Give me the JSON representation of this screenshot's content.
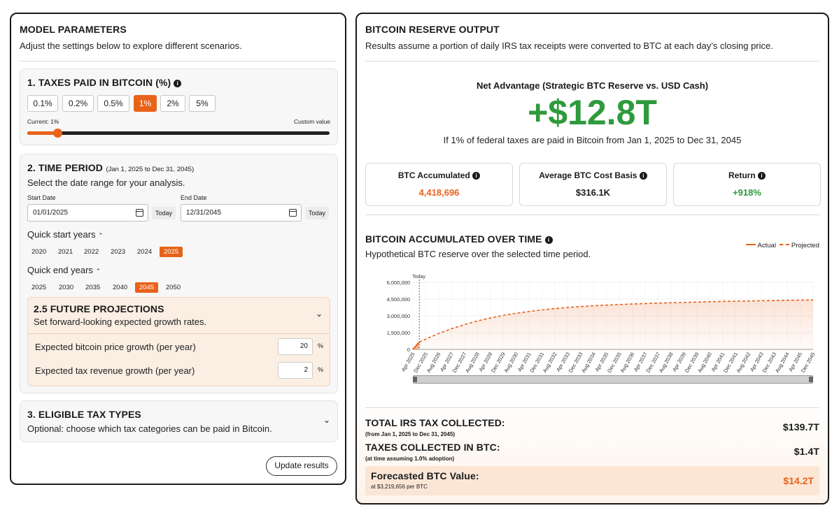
{
  "model": {
    "title": "MODEL PARAMETERS",
    "subtitle": "Adjust the settings below to explore different scenarios.",
    "taxes": {
      "title": "1. TAXES PAID IN BITCOIN (%)",
      "options": [
        "0.1%",
        "0.2%",
        "0.5%",
        "1%",
        "2%",
        "5%"
      ],
      "selected": "1%",
      "current_label": "Current: 1%",
      "custom_label": "Custom value",
      "slider_fraction": 0.1
    },
    "time": {
      "title": "2. TIME PERIOD",
      "range_note": "(Jan 1, 2025 to Dec 31, 2045)",
      "subtitle": "Select the date range for your analysis.",
      "start_label": "Start Date",
      "start_value": "01/01/2025",
      "end_label": "End Date",
      "end_value": "12/31/2045",
      "today_label": "Today",
      "quick_start_label": "Quick start years",
      "quick_start_years": [
        "2020",
        "2021",
        "2022",
        "2023",
        "2024",
        "2025"
      ],
      "quick_start_selected": "2025",
      "quick_end_label": "Quick end years",
      "quick_end_years": [
        "2025",
        "2030",
        "2035",
        "2040",
        "2045",
        "2050"
      ],
      "quick_end_selected": "2045"
    },
    "projections": {
      "title": "2.5 FUTURE PROJECTIONS",
      "subtitle": "Set forward-looking expected growth rates.",
      "price_growth_label": "Expected bitcoin price growth (per year)",
      "price_growth_value": "20",
      "tax_growth_label": "Expected tax revenue growth (per year)",
      "tax_growth_value": "2",
      "unit": "%"
    },
    "eligible": {
      "title": "3. ELIGIBLE TAX TYPES",
      "subtitle": "Optional: choose which tax categories can be paid in Bitcoin."
    },
    "update_button": "Update results"
  },
  "output": {
    "title": "BITCOIN RESERVE OUTPUT",
    "subtitle": "Results assume a portion of daily IRS tax receipts were converted to BTC at each day’s closing price.",
    "net_label": "Net Advantage (Strategic BTC Reserve vs. USD Cash)",
    "net_value": "+$12.8T",
    "net_note": "If 1% of federal taxes are paid in Bitcoin from Jan 1, 2025 to Dec 31, 2045",
    "stats": [
      {
        "label": "BTC Accumulated",
        "value": "4,418,696",
        "color": "#e8621a"
      },
      {
        "label": "Average BTC Cost Basis",
        "value": "$316.1K",
        "color": "#1a1a1a"
      },
      {
        "label": "Return",
        "value": "+918%",
        "color": "#2e9a3c"
      }
    ],
    "chart_title": "BITCOIN ACCUMULATED OVER TIME",
    "chart_subtitle": "Hypothetical BTC reserve over the selected time period.",
    "legend_actual": "Actual",
    "legend_projected": "Projected",
    "totals": [
      {
        "label": "TOTAL IRS TAX COLLECTED:",
        "note": "(from Jan 1, 2025 to Dec 31, 2045)",
        "value": "$139.7T"
      },
      {
        "label": "TAXES COLLECTED IN BTC:",
        "note": "(at time assuming 1.0% adoption)",
        "value": "$1.4T"
      }
    ],
    "forecast": {
      "label": "Forecasted BTC Value:",
      "note": "at $3,219,656 per BTC",
      "value": "$14.2T"
    }
  },
  "chart_data": {
    "type": "area",
    "title": "BITCOIN ACCUMULATED OVER TIME",
    "ylim": [
      0,
      6000000
    ],
    "yticks": [
      0,
      1500000,
      3000000,
      4500000,
      6000000
    ],
    "ytick_labels": [
      "0",
      "1,500,000",
      "3,000,000",
      "4,500,000",
      "6,000,000"
    ],
    "today_marker": "Today",
    "today_x": 0.5,
    "x_labels": [
      "Apr 2025",
      "Dec 2025",
      "Aug 2026",
      "Apr 2027",
      "Dec 2027",
      "Aug 2028",
      "Apr 2029",
      "Dec 2029",
      "Aug 2030",
      "Apr 2031",
      "Dec 2031",
      "Aug 2032",
      "Apr 2033",
      "Dec 2033",
      "Aug 2034",
      "Apr 2035",
      "Dec 2035",
      "Aug 2036",
      "Apr 2037",
      "Dec 2037",
      "Aug 2038",
      "Apr 2039",
      "Dec 2039",
      "Aug 2040",
      "Apr 2041",
      "Dec 2041",
      "Aug 2042",
      "Apr 2043",
      "Dec 2043",
      "Aug 2044",
      "Apr 2045",
      "Dec 2045"
    ],
    "series": [
      {
        "name": "Actual",
        "x": [
          0,
          0.5
        ],
        "values": [
          0,
          650000
        ]
      },
      {
        "name": "Projected",
        "x": [
          0.5,
          1,
          2,
          3,
          4,
          5,
          6,
          7,
          8,
          9,
          10,
          11,
          12,
          13,
          14,
          15,
          16,
          17,
          18,
          19,
          20,
          21,
          22,
          23,
          24,
          25,
          26,
          27,
          28,
          29,
          30,
          31
        ],
        "values": [
          650000,
          920000,
          1420000,
          1850000,
          2220000,
          2540000,
          2810000,
          3040000,
          3230000,
          3390000,
          3530000,
          3650000,
          3750000,
          3830000,
          3900000,
          3960000,
          4010000,
          4060000,
          4100000,
          4140000,
          4170000,
          4200000,
          4230000,
          4260000,
          4290000,
          4310000,
          4330000,
          4350000,
          4370000,
          4390000,
          4405000,
          4418696
        ]
      }
    ]
  },
  "colors": {
    "accent": "#e8621a",
    "green": "#2e9a3c",
    "projection_bg": "#fbeee3"
  }
}
